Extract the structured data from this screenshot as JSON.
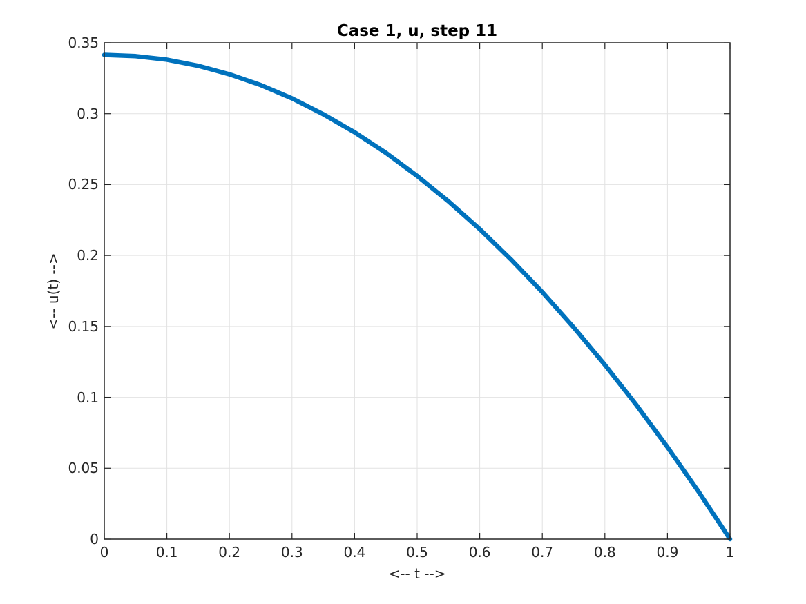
{
  "figure": {
    "background": "#ffffff"
  },
  "style": {
    "axis_color": "#252525",
    "grid_color": "#e2e2e2",
    "text_color": "#262626",
    "tick_length": 9,
    "box_line_width": 1.5,
    "grid_line_width": 1
  },
  "chart_data": {
    "type": "line",
    "title": "Case 1, u, step 11",
    "xlabel": "<-- t -->",
    "ylabel": "<-- u(t) -->",
    "xlim": [
      0,
      1
    ],
    "ylim": [
      0,
      0.35
    ],
    "grid": true,
    "legend": "none",
    "xticks": [
      0,
      0.1,
      0.2,
      0.3,
      0.4,
      0.5,
      0.6,
      0.7,
      0.8,
      0.9,
      1
    ],
    "xtick_labels": [
      "0",
      "0.1",
      "0.2",
      "0.3",
      "0.4",
      "0.5",
      "0.6",
      "0.7",
      "0.8",
      "0.9",
      "1"
    ],
    "yticks": [
      0,
      0.05,
      0.1,
      0.15,
      0.2,
      0.25,
      0.3,
      0.35
    ],
    "ytick_labels": [
      "0",
      "0.05",
      "0.1",
      "0.15",
      "0.2",
      "0.25",
      "0.3",
      "0.35"
    ],
    "x": [
      0,
      0.05,
      0.1,
      0.15,
      0.2,
      0.25,
      0.3,
      0.35,
      0.4,
      0.45,
      0.5,
      0.55,
      0.6,
      0.65,
      0.7,
      0.75,
      0.8,
      0.85,
      0.9,
      0.95,
      1
    ],
    "series": [
      {
        "name": "u",
        "color": "#0072bd",
        "line_width": 6.5,
        "values": [
          0.3415,
          0.3406,
          0.3381,
          0.3338,
          0.3278,
          0.3202,
          0.3108,
          0.2996,
          0.2869,
          0.2724,
          0.2561,
          0.2382,
          0.2186,
          0.1972,
          0.1742,
          0.1494,
          0.1229,
          0.0948,
          0.0649,
          0.0333,
          0
        ]
      }
    ]
  }
}
